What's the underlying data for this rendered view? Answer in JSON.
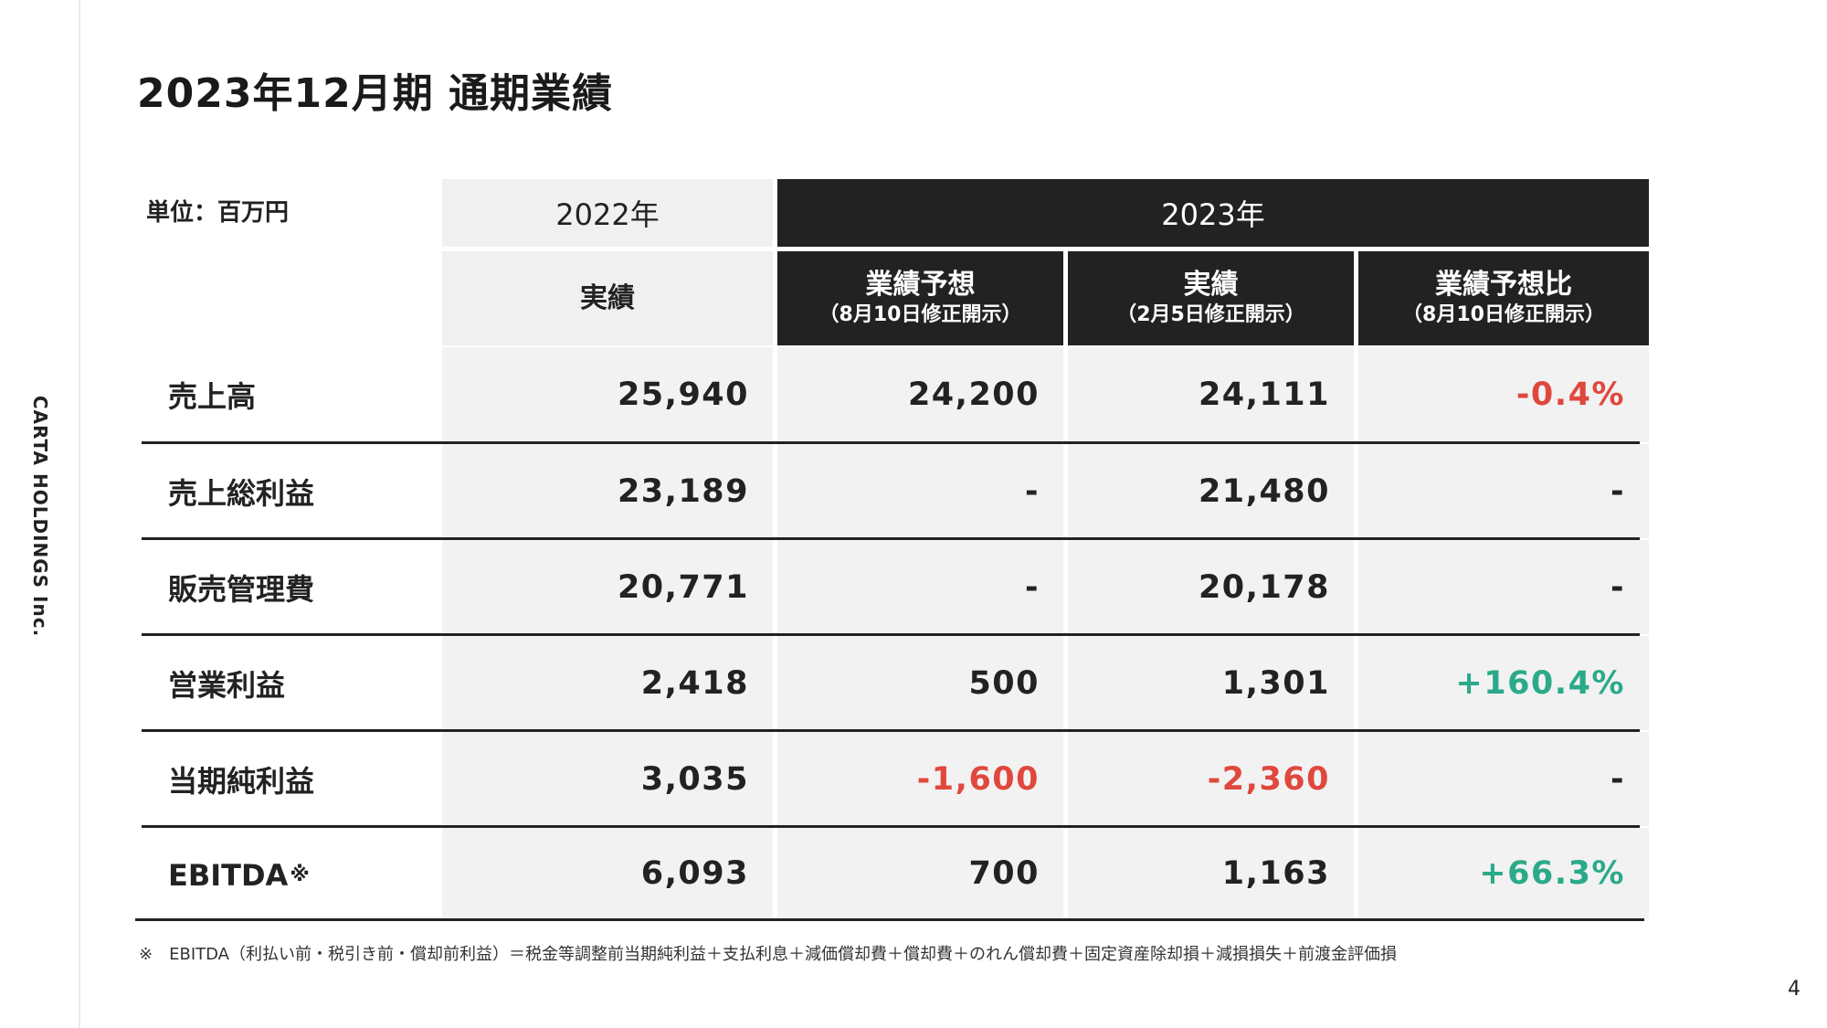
{
  "company": "CARTA HOLDINGS Inc.",
  "title": "2023年12月期 通期業績",
  "unit_label": "単位：百万円",
  "headers": {
    "year_2022": "2022年",
    "year_2023": "2023年",
    "actual_2022": "実績",
    "forecast": {
      "main": "業績予想",
      "note": "（8月10日修正開示）"
    },
    "actual_2023": {
      "main": "実績",
      "note": "（2月5日修正開示）"
    },
    "vs_forecast": {
      "main": "業績予想比",
      "note": "（8月10日修正開示）"
    }
  },
  "rows": [
    {
      "label": "売上高",
      "label_mark": "",
      "a2022": "25,940",
      "forecast": "24,200",
      "a2023": "24,111",
      "ratio": "-0.4%",
      "forecast_tone": "",
      "a2023_tone": "",
      "ratio_tone": "neg"
    },
    {
      "label": "売上総利益",
      "label_mark": "",
      "a2022": "23,189",
      "forecast": "-",
      "a2023": "21,480",
      "ratio": "-",
      "forecast_tone": "",
      "a2023_tone": "",
      "ratio_tone": ""
    },
    {
      "label": "販売管理費",
      "label_mark": "",
      "a2022": "20,771",
      "forecast": "-",
      "a2023": "20,178",
      "ratio": "-",
      "forecast_tone": "",
      "a2023_tone": "",
      "ratio_tone": ""
    },
    {
      "label": "営業利益",
      "label_mark": "",
      "a2022": "2,418",
      "forecast": "500",
      "a2023": "1,301",
      "ratio": "+160.4%",
      "forecast_tone": "",
      "a2023_tone": "",
      "ratio_tone": "pos"
    },
    {
      "label": "当期純利益",
      "label_mark": "",
      "a2022": "3,035",
      "forecast": "-1,600",
      "a2023": "-2,360",
      "ratio": "-",
      "forecast_tone": "neg",
      "a2023_tone": "neg",
      "ratio_tone": ""
    },
    {
      "label": "EBITDA",
      "label_mark": "※",
      "a2022": "6,093",
      "forecast": "700",
      "a2023": "1,163",
      "ratio": "+66.3%",
      "forecast_tone": "",
      "a2023_tone": "",
      "ratio_tone": "pos"
    }
  ],
  "footnote": {
    "mark": "※",
    "text": "EBITDA（利払い前・税引き前・償却前利益）＝税金等調整前当期純利益＋支払利息＋減価償却費＋償却費＋のれん償却費＋固定資産除却損＋減損損失＋前渡金評価損"
  },
  "page_number": "4",
  "colors": {
    "dark": "#222222",
    "negative": "#e0483d",
    "positive": "#2baa8a",
    "cell_gray": "#f2f2f2"
  }
}
